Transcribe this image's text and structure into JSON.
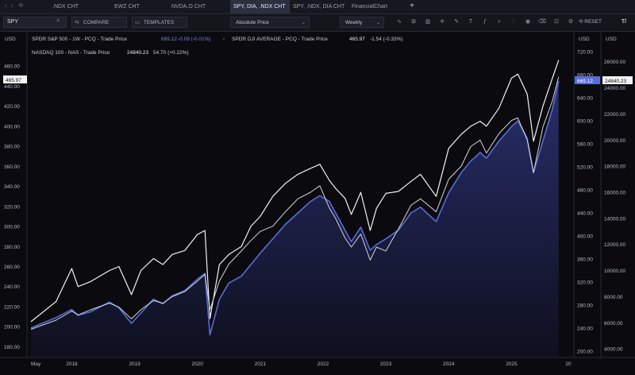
{
  "tabs": [
    {
      "label": ".NDX CHT",
      "active": false
    },
    {
      "label": "EWZ CHT",
      "active": false
    },
    {
      "label": "NVDA.O CHT",
      "active": false
    },
    {
      "label": "SPY, DIA, .NDX CHT",
      "active": true
    },
    {
      "label": "SPY, .NDX, DIA CHT",
      "active": false
    },
    {
      "label": "FinancialChart",
      "active": false
    }
  ],
  "toolbar": {
    "symbol_value": "SPY",
    "compare_label": "COMPARE",
    "templates_label": "TEMPLATES",
    "price_mode": "Absolute Price",
    "interval": "Weekly",
    "reset_label": "RESET"
  },
  "axes": {
    "left_currency": "USD",
    "right1_currency": "USD",
    "right2_currency": "USD",
    "left_ticks": [
      "460.00",
      "440.00",
      "420.00",
      "400.00",
      "380.00",
      "360.00",
      "340.00",
      "320.00",
      "300.00",
      "280.00",
      "260.00",
      "240.00",
      "220.00",
      "200.00",
      "180.00"
    ],
    "right1_ticks": [
      "720.00",
      "680.00",
      "640.00",
      "600.00",
      "560.00",
      "520.00",
      "480.00",
      "440.00",
      "400.00",
      "360.00",
      "320.00",
      "280.00",
      "240.00",
      "200.00"
    ],
    "right2_ticks": [
      "26000.00",
      "24000.00",
      "22000.00",
      "20000.00",
      "18000.00",
      "16000.00",
      "14000.00",
      "12000.00",
      "10000.00",
      "8000.00",
      "6000.00",
      "4000.00"
    ],
    "x_ticks": [
      "May",
      "2018",
      "2019",
      "2020",
      "2021",
      "2022",
      "2023",
      "2024",
      "2025",
      "20"
    ],
    "left_last_value": "465.97",
    "right1_last_value": "669.12",
    "right2_last_value": "24840.23"
  },
  "legend": {
    "spy": {
      "name": "SPDR S&P 500 - 1W - PCQ - Trade Price",
      "last": "669.12",
      "change": "-0.09 (-0.01%)"
    },
    "dia": {
      "name": "SPDR DJI AVERAGE - PCQ - Trade Price",
      "last": "465.97",
      "change": "-1.54 (-0.33%)"
    },
    "ndx": {
      "name": "NASDAQ 100 - NAS - Trade Price",
      "last": "24840.23",
      "change": "54.70 (+0.22%)"
    }
  },
  "colors": {
    "spy": "#5a6cd8",
    "spy_fill": "#1f2550",
    "dia": "#f2f2f2",
    "ndx": "#d4d6dc"
  },
  "chart_data": {
    "type": "line",
    "x": [
      2017.35,
      2017.75,
      2018.0,
      2018.1,
      2018.3,
      2018.6,
      2018.75,
      2018.95,
      2019.1,
      2019.3,
      2019.45,
      2019.6,
      2019.8,
      2020.0,
      2020.12,
      2020.2,
      2020.35,
      2020.5,
      2020.7,
      2020.85,
      2021.0,
      2021.2,
      2021.4,
      2021.6,
      2021.8,
      2021.95,
      2022.1,
      2022.2,
      2022.35,
      2022.45,
      2022.6,
      2022.75,
      2022.85,
      2023.0,
      2023.2,
      2023.4,
      2023.55,
      2023.8,
      2024.0,
      2024.2,
      2024.35,
      2024.5,
      2024.6,
      2024.8,
      2025.0,
      2025.1,
      2025.25,
      2025.35,
      2025.5,
      2025.65,
      2025.75
    ],
    "series": [
      {
        "name": "SPDR S&P 500",
        "axis": "right1",
        "values": [
          240,
          258,
          272,
          262,
          268,
          285,
          275,
          248,
          266,
          290,
          282,
          296,
          305,
          325,
          335,
          228,
          290,
          318,
          330,
          350,
          370,
          395,
          420,
          440,
          460,
          470,
          460,
          440,
          410,
          390,
          415,
          375,
          385,
          395,
          410,
          440,
          450,
          425,
          475,
          510,
          530,
          545,
          535,
          565,
          590,
          600,
          570,
          510,
          565,
          620,
          669
        ]
      },
      {
        "name": "SPDR DJI AVERAGE",
        "axis": "left",
        "values": [
          205,
          225,
          258,
          240,
          245,
          256,
          260,
          232,
          256,
          268,
          262,
          272,
          276,
          292,
          296,
          208,
          262,
          272,
          280,
          300,
          310,
          330,
          343,
          352,
          358,
          362,
          346,
          338,
          328,
          312,
          334,
          296,
          318,
          333,
          335,
          345,
          352,
          330,
          378,
          392,
          400,
          405,
          400,
          418,
          448,
          452,
          432,
          385,
          420,
          448,
          466
        ]
      },
      {
        "name": "NASDAQ 100",
        "axis": "right2",
        "values": [
          5500,
          6200,
          6900,
          6600,
          7000,
          7500,
          7200,
          6300,
          7000,
          7700,
          7500,
          8000,
          8400,
          9200,
          9700,
          7000,
          9200,
          10500,
          11500,
          12300,
          13000,
          13400,
          14500,
          15500,
          16000,
          16500,
          14800,
          14000,
          12500,
          11800,
          12800,
          10800,
          11800,
          11500,
          13200,
          15000,
          15500,
          14500,
          17000,
          18000,
          19500,
          20000,
          19000,
          20500,
          21500,
          21700,
          20000,
          17500,
          21000,
          23000,
          24840
        ]
      }
    ],
    "ylim_left": [
      170,
      480
    ],
    "ylim_right1": [
      190,
      730
    ],
    "ylim_right2": [
      3400,
      27200
    ],
    "xlim": [
      2017.3,
      2025.98
    ]
  }
}
